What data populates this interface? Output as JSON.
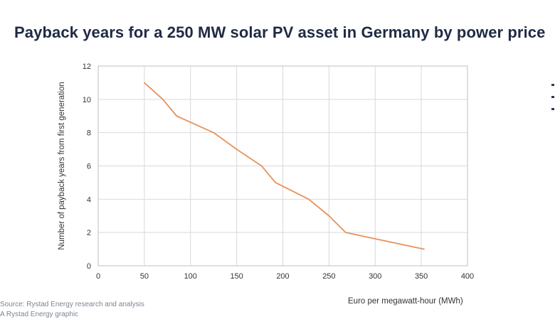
{
  "title": "Payback years for a 250 MW solar PV asset in Germany by power price",
  "footnotes": {
    "source": "Source: Rystad Energy research and analysis",
    "credit": "A Rystad Energy graphic"
  },
  "colors": {
    "series": "#e8925a",
    "grid": "#d9d9d9",
    "title": "#1f2a44"
  },
  "chart_data": {
    "type": "line",
    "title": "Payback years for a 250 MW solar PV asset in Germany by power price",
    "xlabel": "Euro per megawatt-hour (MWh)",
    "ylabel": "Number of payback years from first generation",
    "xlim": [
      0,
      400
    ],
    "ylim": [
      0,
      12
    ],
    "xticks": [
      0,
      50,
      100,
      150,
      200,
      250,
      300,
      350,
      400
    ],
    "yticks": [
      0,
      2,
      4,
      6,
      8,
      10,
      12
    ],
    "grid": true,
    "series": [
      {
        "x": [
          50,
          70,
          85,
          125,
          150,
          177,
          192,
          228,
          250,
          268,
          353
        ],
        "y": [
          11,
          10,
          9,
          8,
          7,
          6,
          5,
          4,
          3,
          2,
          1
        ]
      }
    ]
  }
}
